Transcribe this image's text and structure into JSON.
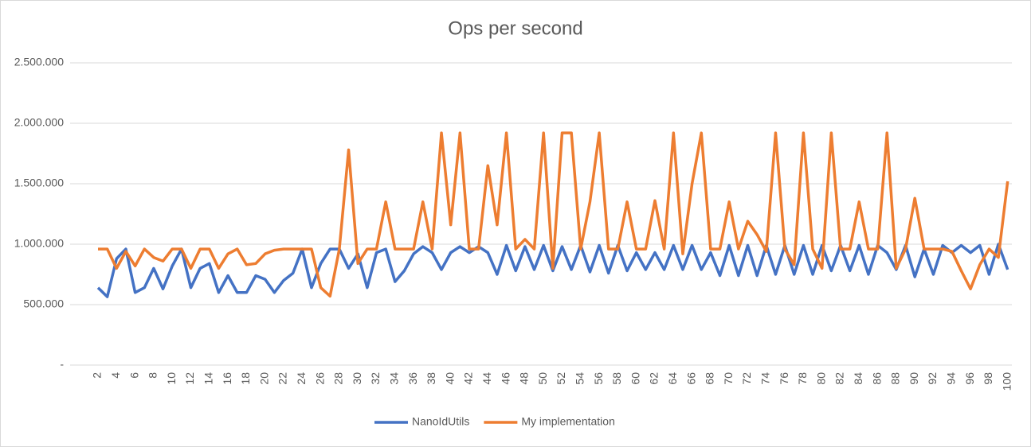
{
  "chart_data": {
    "type": "line",
    "title": "Ops per second",
    "categories": [
      "2",
      null,
      "4",
      null,
      "6",
      null,
      "8",
      null,
      "10",
      null,
      "12",
      null,
      "14",
      null,
      "16",
      null,
      "18",
      null,
      "20",
      null,
      "22",
      null,
      "24",
      null,
      "26",
      null,
      "28",
      null,
      "30",
      null,
      "32",
      null,
      "34",
      null,
      "36",
      null,
      "38",
      null,
      "40",
      null,
      "42",
      null,
      "44",
      null,
      "46",
      null,
      "48",
      null,
      "50",
      null,
      "52",
      null,
      "54",
      null,
      "56",
      null,
      "58",
      null,
      "60",
      null,
      "62",
      null,
      "64",
      null,
      "66",
      null,
      "68",
      null,
      "70",
      null,
      "72",
      null,
      "74",
      null,
      "76",
      null,
      "78",
      null,
      "80",
      null,
      "82",
      null,
      "84",
      null,
      "86",
      null,
      "88",
      null,
      "90",
      null,
      "92",
      null,
      "94",
      null,
      "96",
      null,
      "98",
      null,
      "100"
    ],
    "series": [
      {
        "name": "NanoIdUtils",
        "color": "#4472c4",
        "values": [
          640000,
          565000,
          880000,
          960000,
          600000,
          640000,
          800000,
          630000,
          820000,
          960000,
          640000,
          800000,
          840000,
          600000,
          740000,
          600000,
          600000,
          740000,
          710000,
          600000,
          700000,
          760000,
          960000,
          640000,
          840000,
          960000,
          960000,
          800000,
          920000,
          640000,
          930000,
          960000,
          690000,
          780000,
          920000,
          980000,
          930000,
          790000,
          930000,
          980000,
          930000,
          980000,
          930000,
          750000,
          990000,
          780000,
          980000,
          790000,
          990000,
          780000,
          980000,
          790000,
          990000,
          770000,
          990000,
          760000,
          990000,
          780000,
          930000,
          790000,
          930000,
          790000,
          990000,
          790000,
          990000,
          790000,
          930000,
          740000,
          990000,
          740000,
          990000,
          740000,
          990000,
          750000,
          990000,
          750000,
          990000,
          750000,
          990000,
          780000,
          990000,
          780000,
          990000,
          750000,
          990000,
          930000,
          790000,
          990000,
          730000,
          960000,
          750000,
          990000,
          930000,
          990000,
          930000,
          990000,
          750000,
          1000000,
          790000
        ]
      },
      {
        "name": "My implementation",
        "color": "#ed7d31",
        "values": [
          960000,
          960000,
          800000,
          940000,
          820000,
          960000,
          890000,
          860000,
          960000,
          960000,
          800000,
          960000,
          960000,
          800000,
          920000,
          960000,
          830000,
          840000,
          920000,
          950000,
          960000,
          960000,
          960000,
          960000,
          640000,
          570000,
          960000,
          1780000,
          840000,
          960000,
          960000,
          1350000,
          960000,
          960000,
          960000,
          1350000,
          960000,
          1920000,
          1160000,
          1920000,
          960000,
          960000,
          1650000,
          1160000,
          1920000,
          960000,
          1040000,
          960000,
          1920000,
          800000,
          1920000,
          1920000,
          960000,
          1350000,
          1920000,
          960000,
          960000,
          1350000,
          960000,
          960000,
          1360000,
          960000,
          1920000,
          920000,
          1500000,
          1920000,
          960000,
          960000,
          1350000,
          960000,
          1190000,
          1080000,
          940000,
          1920000,
          960000,
          830000,
          1920000,
          960000,
          800000,
          1920000,
          960000,
          960000,
          1350000,
          960000,
          960000,
          1920000,
          800000,
          960000,
          1380000,
          960000,
          960000,
          960000,
          940000,
          780000,
          630000,
          830000,
          960000,
          890000,
          1520000
        ]
      }
    ],
    "ylim": [
      0,
      2500000
    ],
    "yticks": [
      {
        "value": 0,
        "label": "-"
      },
      {
        "value": 500000,
        "label": "500.000"
      },
      {
        "value": 1000000,
        "label": "1.000.000"
      },
      {
        "value": 1500000,
        "label": "1.500.000"
      },
      {
        "value": 2000000,
        "label": "2.000.000"
      },
      {
        "value": 2500000,
        "label": "2.500.000"
      }
    ],
    "grid": true,
    "legend": "bottom"
  }
}
